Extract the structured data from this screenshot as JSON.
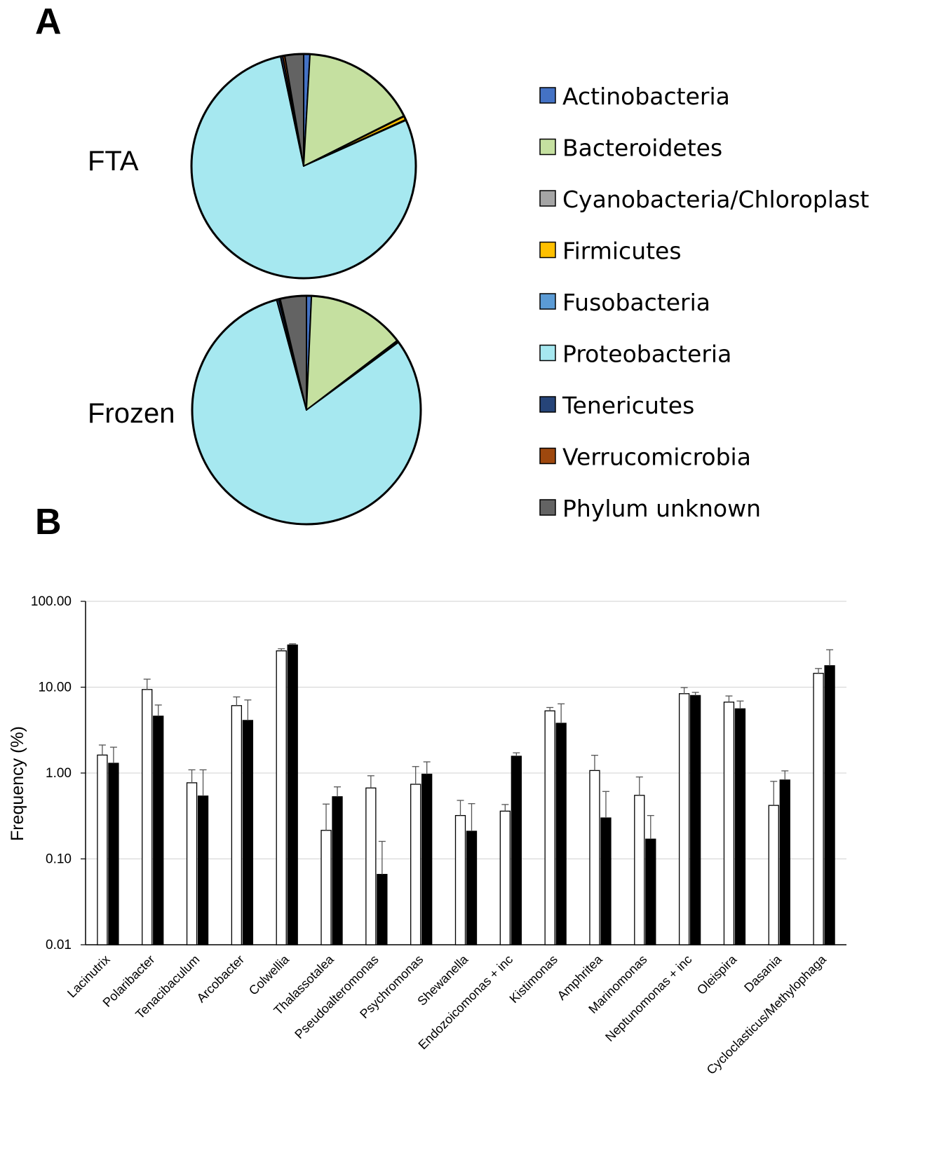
{
  "panels": {
    "a_label": "A",
    "b_label": "B"
  },
  "chart_data": [
    {
      "type": "pie",
      "panel": "A",
      "legend_position": "right",
      "legend": [
        {
          "name": "Actinobacteria",
          "color": "#4472C4"
        },
        {
          "name": "Bacteroidetes",
          "color": "#C5E0A0"
        },
        {
          "name": "Cyanobacteria/Chloroplast",
          "color": "#A5A5A5"
        },
        {
          "name": "Firmicutes",
          "color": "#FFC000"
        },
        {
          "name": "Fusobacteria",
          "color": "#5B9BD5"
        },
        {
          "name": "Proteobacteria",
          "color": "#A6E8F0"
        },
        {
          "name": "Tenericutes",
          "color": "#264478"
        },
        {
          "name": "Verrucomicrobia",
          "color": "#9E480E"
        },
        {
          "name": "Phylum unknown",
          "color": "#636363"
        }
      ],
      "pies": [
        {
          "label": "FTA",
          "slices": [
            {
              "name": "Actinobacteria",
              "value": 0.9
            },
            {
              "name": "Bacteroidetes",
              "value": 16.7
            },
            {
              "name": "Cyanobacteria/Chloroplast",
              "value": 0.1
            },
            {
              "name": "Firmicutes",
              "value": 0.5
            },
            {
              "name": "Fusobacteria",
              "value": 0.1
            },
            {
              "name": "Proteobacteria",
              "value": 78.4
            },
            {
              "name": "Tenericutes",
              "value": 0.3
            },
            {
              "name": "Verrucomicrobia",
              "value": 0.3
            },
            {
              "name": "Phylum unknown",
              "value": 2.7
            }
          ]
        },
        {
          "label": "Frozen",
          "slices": [
            {
              "name": "Actinobacteria",
              "value": 0.7
            },
            {
              "name": "Bacteroidetes",
              "value": 13.9
            },
            {
              "name": "Cyanobacteria/Chloroplast",
              "value": 0.1
            },
            {
              "name": "Firmicutes",
              "value": 0.1
            },
            {
              "name": "Fusobacteria",
              "value": 0.1
            },
            {
              "name": "Proteobacteria",
              "value": 80.9
            },
            {
              "name": "Tenericutes",
              "value": 0.3
            },
            {
              "name": "Verrucomicrobia",
              "value": 0.2
            },
            {
              "name": "Phylum unknown",
              "value": 3.7
            }
          ]
        }
      ]
    },
    {
      "type": "bar",
      "panel": "B",
      "ylabel": "Frequency (%)",
      "yscale": "log",
      "ylim": [
        0.01,
        100
      ],
      "yticks": [
        "0.01",
        "0.10",
        "1.00",
        "10.00",
        "100.00"
      ],
      "grid": true,
      "categories": [
        "Lacinutrix",
        "Polaribacter",
        "Tenacibaculum",
        "Arcobacter",
        "Colwellia",
        "Thalassotalea",
        "Pseudoalteromonas",
        "Psychromonas",
        "Shewanella",
        "Endozoicomonas + inc",
        "Kistimonas",
        "Amphritea",
        "Marinomonas",
        "Neptunomonas + inc",
        "Oleispira",
        "Dasania",
        "Cycloclasticus/Methylophaga"
      ],
      "series": [
        {
          "fill": "#FFFFFF",
          "values": [
            1.62,
            9.4,
            0.77,
            6.1,
            26.5,
            0.215,
            0.67,
            0.74,
            0.32,
            0.36,
            5.3,
            1.07,
            0.55,
            8.4,
            6.7,
            0.42,
            14.5
          ],
          "errors": [
            0.5,
            3.0,
            0.32,
            1.6,
            1.5,
            0.22,
            0.26,
            0.45,
            0.16,
            0.07,
            0.5,
            0.54,
            0.35,
            1.5,
            1.2,
            0.38,
            2.0
          ]
        },
        {
          "fill": "#000000",
          "values": [
            1.3,
            4.6,
            0.54,
            4.1,
            31.0,
            0.53,
            0.066,
            0.97,
            0.21,
            1.57,
            3.8,
            0.3,
            0.17,
            8.0,
            5.6,
            0.83,
            17.8
          ],
          "errors": [
            0.7,
            1.6,
            0.55,
            3.0,
            1.0,
            0.16,
            0.094,
            0.38,
            0.23,
            0.15,
            2.6,
            0.31,
            0.15,
            0.7,
            1.3,
            0.23,
            9.5
          ]
        }
      ]
    }
  ]
}
